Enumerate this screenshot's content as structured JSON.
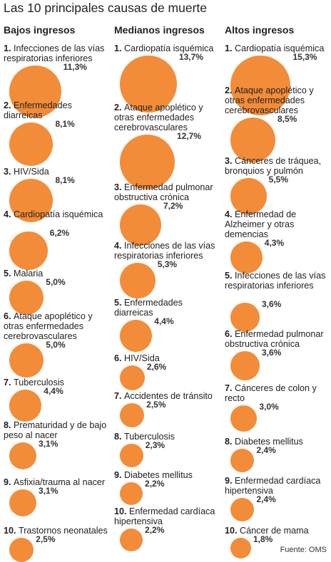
{
  "title": "Las 10 principales causas de muerte",
  "source": "Fuente: OMS",
  "chart_data": {
    "type": "bubble",
    "color": "#f28c38",
    "unit": "%",
    "groups": [
      {
        "name": "Bajos ingresos",
        "items": [
          {
            "rank": "1.",
            "label": "Infecciones de las vías respiratorias inferiores",
            "value": 11.3,
            "value_text": "11,3%"
          },
          {
            "rank": "2.",
            "label": "Enfermedades diarreicas",
            "value": 8.1,
            "value_text": "8,1%"
          },
          {
            "rank": "3.",
            "label": "HIV/Sida",
            "value": 8.1,
            "value_text": "8,1%"
          },
          {
            "rank": "4.",
            "label": "Cardiopatía isquémica",
            "value": 6.2,
            "value_text": "6,2%"
          },
          {
            "rank": "5.",
            "label": "Malaria",
            "value": 5.0,
            "value_text": "5,0%"
          },
          {
            "rank": "6.",
            "label": "Ataque apoplético y otras enfermedades cerebrovasculares",
            "value": 5.0,
            "value_text": "5,0%"
          },
          {
            "rank": "7.",
            "label": "Tuberculosis",
            "value": 4.4,
            "value_text": "4,4%"
          },
          {
            "rank": "8.",
            "label": "Prematuridad y de bajo peso al nacer",
            "value": 3.1,
            "value_text": "3,1%"
          },
          {
            "rank": "9.",
            "label": "Asfixia/trauma al nacer",
            "value": 3.1,
            "value_text": "3,1%"
          },
          {
            "rank": "10.",
            "label": "Trastornos neonatales",
            "value": 2.5,
            "value_text": "2,5%"
          }
        ]
      },
      {
        "name": "Medianos ingresos",
        "items": [
          {
            "rank": "1.",
            "label": "Cardiopatía isquémica",
            "value": 13.7,
            "value_text": "13,7%"
          },
          {
            "rank": "2.",
            "label": "Ataque apoplético y otras enfermedades cerebrovasculares",
            "value": 12.7,
            "value_text": "12,7%"
          },
          {
            "rank": "3.",
            "label": "Enfermedad pulmonar obstructiva crónica",
            "value": 7.2,
            "value_text": "7,2%"
          },
          {
            "rank": "4.",
            "label": "Infecciones de las vías respiratorias inferiores",
            "value": 5.3,
            "value_text": "5,3%"
          },
          {
            "rank": "5.",
            "label": "Enfermedades diarreicas",
            "value": 4.4,
            "value_text": "4,4%"
          },
          {
            "rank": "6.",
            "label": "HIV/Sida",
            "value": 2.6,
            "value_text": "2,6%"
          },
          {
            "rank": "7.",
            "label": "Accidentes de tránsito",
            "value": 2.5,
            "value_text": "2,5%"
          },
          {
            "rank": "8.",
            "label": "Tuberculosis",
            "value": 2.3,
            "value_text": "2,3%"
          },
          {
            "rank": "9.",
            "label": "Diabetes mellitus",
            "value": 2.2,
            "value_text": "2,2%"
          },
          {
            "rank": "10.",
            "label": "Enfermedad cardíaca hipertensiva",
            "value": 2.2,
            "value_text": "2,2%"
          }
        ]
      },
      {
        "name": "Altos ingresos",
        "items": [
          {
            "rank": "1.",
            "label": "Cardiopatía isquémica",
            "value": 15.3,
            "value_text": "15,3%"
          },
          {
            "rank": "2.",
            "label": "Ataque apoplético y otras enfermedades cerebrovasculares",
            "value": 8.5,
            "value_text": "8,5%"
          },
          {
            "rank": "3.",
            "label": "Cánceres de tráquea, bronquios y pulmón",
            "value": 5.5,
            "value_text": "5,5%"
          },
          {
            "rank": "4.",
            "label": "Enfermedad de Alzheimer y otras demencias",
            "value": 4.3,
            "value_text": "4,3%"
          },
          {
            "rank": "5.",
            "label": "Infecciones de las vías respiratorias inferiores",
            "value": 3.6,
            "value_text": "3,6%"
          },
          {
            "rank": "6.",
            "label": "Enfermedad pulmonar obstructiva crónica",
            "value": 3.6,
            "value_text": "3,6%"
          },
          {
            "rank": "7.",
            "label": "Cánceres de colon y recto",
            "value": 3.0,
            "value_text": "3,0%"
          },
          {
            "rank": "8.",
            "label": "Diabetes mellitus",
            "value": 2.4,
            "value_text": "2,4%"
          },
          {
            "rank": "9.",
            "label": "Enfermedad cardíaca hipertensiva",
            "value": 2.4,
            "value_text": "2,4%"
          },
          {
            "rank": "10.",
            "label": "Cáncer de mama",
            "value": 1.8,
            "value_text": "1,8%"
          }
        ]
      }
    ]
  }
}
